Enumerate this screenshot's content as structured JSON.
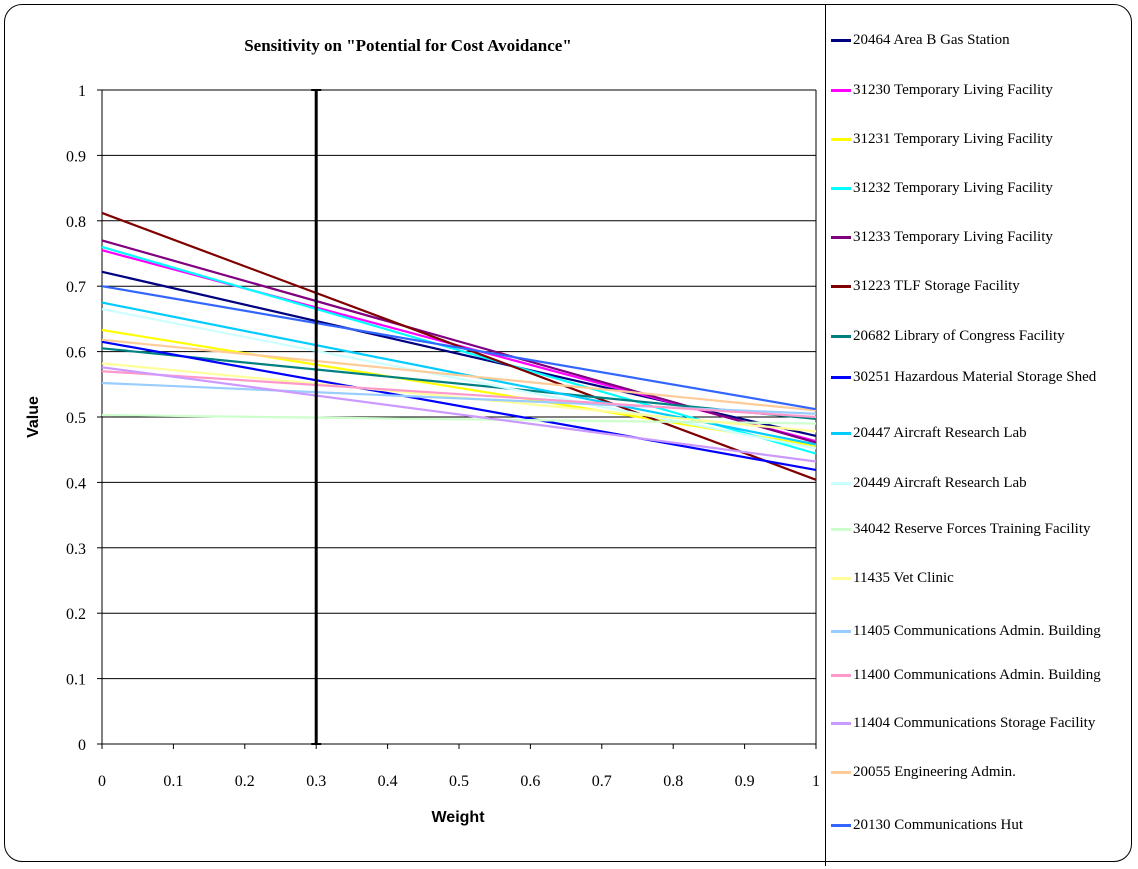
{
  "chart_data": {
    "type": "line",
    "title": "Sensitivity on \"Potential for Cost Avoidance\"",
    "xlabel": "Weight",
    "ylabel": "Value",
    "xlim": [
      0,
      1
    ],
    "ylim": [
      0,
      1
    ],
    "xticks": [
      "0",
      "0.1",
      "0.2",
      "0.3",
      "0.4",
      "0.5",
      "0.6",
      "0.7",
      "0.8",
      "0.9",
      "1"
    ],
    "yticks": [
      "0",
      "0.1",
      "0.2",
      "0.3",
      "0.4",
      "0.5",
      "0.6",
      "0.7",
      "0.8",
      "0.9",
      "1"
    ],
    "grid": "horizontal",
    "legend_position": "right",
    "reference_line": {
      "x": 0.3,
      "y_range": [
        0,
        1
      ],
      "color": "#000000"
    },
    "x": [
      0,
      1
    ],
    "series": [
      {
        "name": "20464 Area  B Gas  Station",
        "color": "#000080",
        "values": [
          0.722,
          0.471
        ]
      },
      {
        "name": "31230 Temporary Living Facility",
        "color": "#ff00ff",
        "values": [
          0.755,
          0.463
        ]
      },
      {
        "name": "31231 Temporary Living Facility",
        "color": "#ffff00",
        "values": [
          0.633,
          0.456
        ]
      },
      {
        "name": "31232 Temporary Living Facility",
        "color": "#00ffff",
        "values": [
          0.76,
          0.444
        ]
      },
      {
        "name": "31233 Temporary Living Facility",
        "color": "#800080",
        "values": [
          0.77,
          0.461
        ]
      },
      {
        "name": "31223 TLF  Storage Facility",
        "color": "#800000",
        "values": [
          0.812,
          0.404
        ]
      },
      {
        "name": "20682 Library of Congress Facility",
        "color": "#008080",
        "values": [
          0.605,
          0.497
        ]
      },
      {
        "name": "30251 Hazardous Material Storage Shed",
        "color": "#0000ff",
        "values": [
          0.615,
          0.419
        ]
      },
      {
        "name": "20447 Aircraft Research Lab",
        "color": "#00ccff",
        "values": [
          0.675,
          0.458
        ]
      },
      {
        "name": "20449 Aircraft Research Lab",
        "color": "#ccffff",
        "values": [
          0.665,
          0.452
        ]
      },
      {
        "name": "34042 Reserve Forces Training Facility",
        "color": "#ccffcc",
        "values": [
          0.503,
          0.49
        ]
      },
      {
        "name": "11435 Vet Clinic",
        "color": "#ffff99",
        "values": [
          0.582,
          0.478
        ]
      },
      {
        "name": "11405 Communications Admin. Building",
        "color": "#99ccff",
        "values": [
          0.552,
          0.505
        ]
      },
      {
        "name": "11400 Communications Admin. Building",
        "color": "#ff99cc",
        "values": [
          0.57,
          0.5
        ]
      },
      {
        "name": "11404 Communications Storage Facility",
        "color": "#cc99ff",
        "values": [
          0.576,
          0.432
        ]
      },
      {
        "name": "20055 Engineering Admin.",
        "color": "#ffcc99",
        "values": [
          0.618,
          0.51
        ]
      },
      {
        "name": "20130 Communications Hut",
        "color": "#3366ff",
        "values": [
          0.7,
          0.512
        ]
      }
    ]
  }
}
